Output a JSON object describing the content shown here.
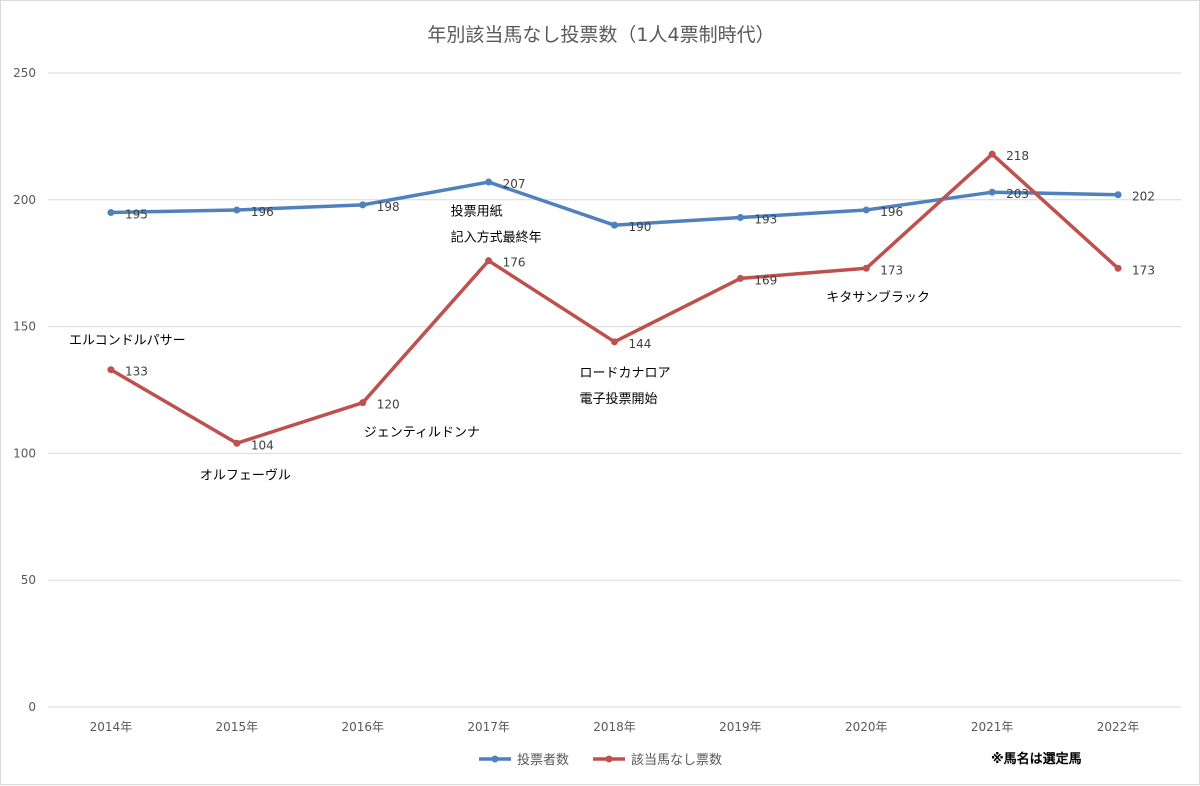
{
  "chart_data": {
    "type": "line",
    "title": "年別該当馬なし投票数（1人4票制時代）",
    "categories": [
      "2014年",
      "2015年",
      "2016年",
      "2017年",
      "2018年",
      "2019年",
      "2020年",
      "2021年",
      "2022年"
    ],
    "series": [
      {
        "name": "投票者数",
        "color": "#4f81bd",
        "values": [
          195,
          196,
          198,
          207,
          190,
          193,
          196,
          203,
          202
        ]
      },
      {
        "name": "該当馬なし票数",
        "color": "#c0504d",
        "values": [
          133,
          104,
          120,
          176,
          144,
          169,
          173,
          218,
          173
        ]
      }
    ],
    "ylim": [
      0,
      250
    ],
    "yticks": [
      0,
      50,
      100,
      150,
      200,
      250
    ],
    "grid": true,
    "legend": "bottom",
    "annotations": [
      {
        "category_index": 0,
        "lines": [
          "エルコンドルパサー"
        ]
      },
      {
        "category_index": 1,
        "lines": [
          "オルフェーヴル"
        ]
      },
      {
        "category_index": 2,
        "lines": [
          "ジェンティルドンナ"
        ]
      },
      {
        "category_index": 3,
        "lines": [
          "投票用紙",
          "記入方式最終年"
        ]
      },
      {
        "category_index": 4,
        "lines": [
          "ロードカナロア",
          "電子投票開始"
        ]
      },
      {
        "category_index": 6,
        "lines": [
          "キタサンブラック"
        ]
      }
    ],
    "note": "※馬名は選定馬"
  }
}
